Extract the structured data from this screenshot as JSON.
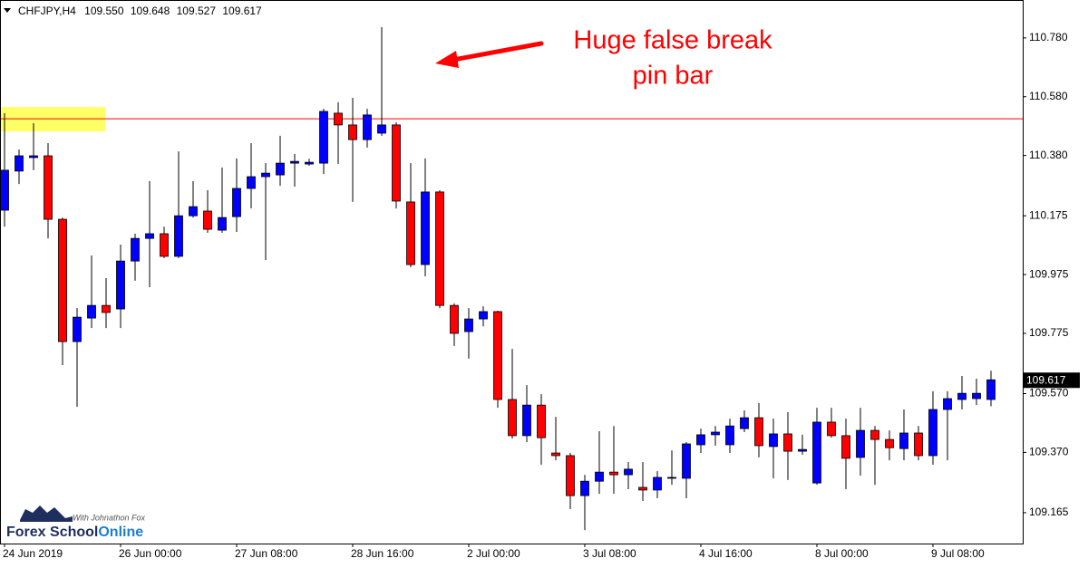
{
  "chart_data": {
    "type": "candlestick",
    "symbol": "CHFJPY,H4",
    "quote_labels": [
      "109.550",
      "109.648",
      "109.527",
      "109.617"
    ],
    "categories": [
      "24 Jun 2019",
      null,
      null,
      null,
      null,
      null,
      null,
      null,
      "26 Jun 00:00",
      null,
      null,
      null,
      null,
      null,
      null,
      null,
      "27 Jun 08:00",
      null,
      null,
      null,
      null,
      null,
      null,
      null,
      "28 Jun 16:00",
      null,
      null,
      null,
      null,
      null,
      null,
      null,
      "2 Jul 00:00",
      null,
      null,
      null,
      null,
      null,
      null,
      null,
      "3 Jul 08:00",
      null,
      null,
      null,
      null,
      null,
      null,
      null,
      "4 Jul 16:00",
      null,
      null,
      null,
      null,
      null,
      null,
      null,
      "8 Jul 00:00",
      null,
      null,
      null,
      null,
      null,
      null,
      null,
      "9 Jul 08:00",
      null,
      null,
      null,
      null
    ],
    "open": [
      110.194,
      110.327,
      110.373,
      110.379,
      110.163,
      109.747,
      109.827,
      109.87,
      109.858,
      110.021,
      110.098,
      110.114,
      110.037,
      110.175,
      110.191,
      110.126,
      110.172,
      110.268,
      110.308,
      110.314,
      110.354,
      110.351,
      110.354,
      110.524,
      110.484,
      110.434,
      110.456,
      110.484,
      110.222,
      110.009,
      110.256,
      109.87,
      109.781,
      109.824,
      109.849,
      109.55,
      109.427,
      109.531,
      109.368,
      109.359,
      109.223,
      109.272,
      109.303,
      109.294,
      109.251,
      109.242,
      109.282,
      109.282,
      109.396,
      109.43,
      109.396,
      109.451,
      109.488,
      109.39,
      109.433,
      109.374,
      109.266,
      109.473,
      109.427,
      109.353,
      109.445,
      109.414,
      109.383,
      109.436,
      109.359,
      109.516,
      109.55,
      109.553,
      109.55
    ],
    "high": [
      110.524,
      110.4,
      110.49,
      110.422,
      110.169,
      109.861,
      110.04,
      109.963,
      110.077,
      110.114,
      110.293,
      110.138,
      110.394,
      110.293,
      110.262,
      110.339,
      110.37,
      110.422,
      110.354,
      110.447,
      110.385,
      110.369,
      110.539,
      110.561,
      110.576,
      110.539,
      110.817,
      110.493,
      110.354,
      110.37,
      110.262,
      109.877,
      109.861,
      109.867,
      109.852,
      109.722,
      109.599,
      109.568,
      109.491,
      109.368,
      109.294,
      109.442,
      109.46,
      109.337,
      109.337,
      109.306,
      109.377,
      109.405,
      109.451,
      109.46,
      109.485,
      109.513,
      109.538,
      109.485,
      109.507,
      109.43,
      109.522,
      109.522,
      109.485,
      109.522,
      109.46,
      109.445,
      109.516,
      109.46,
      109.578,
      109.578,
      109.63,
      109.621,
      109.648
    ],
    "low": [
      110.138,
      110.283,
      110.33,
      110.098,
      109.667,
      109.525,
      109.793,
      109.793,
      109.793,
      109.954,
      109.932,
      110.031,
      110.031,
      110.169,
      110.117,
      110.117,
      110.12,
      110.2,
      110.024,
      110.277,
      110.274,
      110.345,
      110.317,
      110.351,
      110.222,
      110.407,
      110.447,
      110.2,
      110.0,
      109.969,
      109.861,
      109.732,
      109.689,
      109.799,
      109.522,
      109.417,
      109.405,
      109.328,
      109.343,
      109.177,
      109.106,
      109.229,
      109.229,
      109.245,
      109.205,
      109.214,
      109.26,
      109.214,
      109.368,
      109.393,
      109.368,
      109.439,
      109.353,
      109.282,
      109.276,
      109.362,
      109.26,
      109.42,
      109.245,
      109.291,
      109.26,
      109.343,
      109.343,
      109.343,
      109.328,
      109.343,
      109.516,
      109.531,
      109.527
    ],
    "close": [
      110.33,
      110.379,
      110.379,
      110.163,
      109.747,
      109.83,
      109.87,
      109.846,
      110.021,
      110.098,
      110.114,
      110.037,
      110.175,
      110.206,
      110.129,
      110.169,
      110.268,
      110.308,
      110.32,
      110.354,
      110.36,
      110.357,
      110.53,
      110.484,
      110.434,
      110.518,
      110.484,
      110.225,
      110.009,
      110.256,
      109.87,
      109.775,
      109.824,
      109.849,
      109.55,
      109.427,
      109.531,
      109.42,
      109.359,
      109.223,
      109.272,
      109.303,
      109.294,
      109.313,
      109.242,
      109.285,
      109.285,
      109.399,
      109.43,
      109.439,
      109.46,
      109.488,
      109.393,
      109.433,
      109.374,
      109.38,
      109.473,
      109.427,
      109.35,
      109.445,
      109.414,
      109.386,
      109.436,
      109.359,
      109.516,
      109.553,
      109.571,
      109.571,
      109.617
    ],
    "up_color": "#0000ff",
    "down_color": "#ff0000",
    "ylim": [
      109.06,
      110.909
    ],
    "yticks": [
      {
        "value": 110.78,
        "label": "110.780"
      },
      {
        "value": 110.58,
        "label": "110.580"
      },
      {
        "value": 110.38,
        "label": "110.380"
      },
      110.175,
      109.975,
      109.775,
      {
        "value": 109.57,
        "label": "109.570"
      },
      {
        "value": 109.37,
        "label": "109.370"
      },
      109.165
    ],
    "level": 110.505,
    "level_color": "#ff0000",
    "zone": [
      110.462,
      110.545
    ],
    "zone_color": "#ffff66",
    "annotation": [
      "Huge false break",
      "pin bar"
    ],
    "logo": {
      "tagline": "With Johnathon Fox",
      "name": "Forex School",
      "suffix": "Online"
    }
  }
}
